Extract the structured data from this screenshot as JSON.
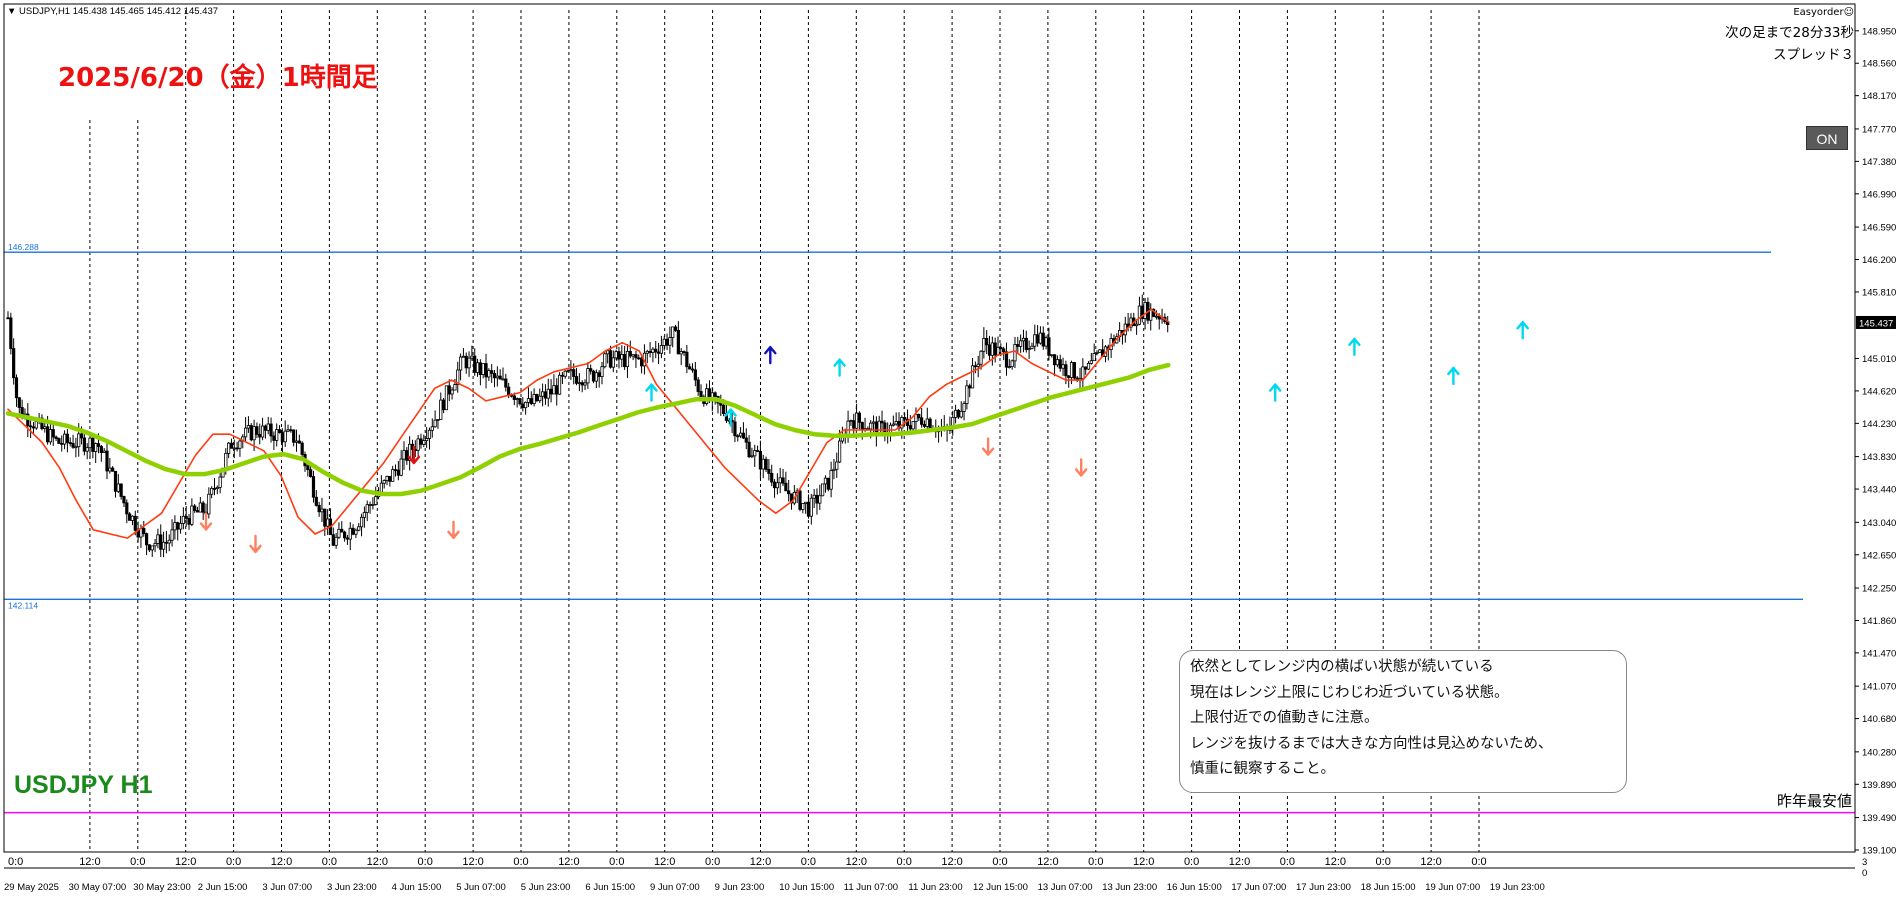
{
  "header": {
    "symbol_label": "USDJPY,H1",
    "ohlc": "145.438 145.465 145.412 145.437",
    "date_title": "2025/6/20（金）1時間足",
    "symbol_tag": "USDJPY H1"
  },
  "panel": {
    "easyorder": "Easyorder☺",
    "countdown": "次の足まで28分33秒",
    "spread": "スプレッド３",
    "on_button": "ON",
    "last_year_low": "昨年最安値"
  },
  "note_lines": [
    "依然としてレンジ内の横ばい状態が続いている",
    "現在はレンジ上限にじわじわ近づいている状態。",
    "上限付近での値動きに注意。",
    "レンジを抜けるまでは大きな方向性は見込めないため、",
    "慎重に観察すること。"
  ],
  "colors": {
    "candle": "#000000",
    "fast_ma": "#ff3b10",
    "slow_ma": "#8fd000",
    "range_line": "#1a73d9",
    "low_line": "#ff00ff",
    "title_red": "#ee1111",
    "symbol_green": "#1a8a1a"
  },
  "chart_data": {
    "type": "candlestick",
    "ylim": [
      139.1,
      149.2
    ],
    "y_ticks": [
      "148.950",
      "148.560",
      "148.170",
      "147.770",
      "147.380",
      "146.990",
      "146.590",
      "146.200",
      "145.810",
      "145.010",
      "144.620",
      "144.230",
      "143.830",
      "143.440",
      "143.040",
      "142.650",
      "142.250",
      "141.860",
      "141.470",
      "141.070",
      "140.680",
      "140.280",
      "139.890",
      "139.490",
      "139.100"
    ],
    "current_price": "145.437",
    "bottom_right_axis": [
      "3",
      "0"
    ],
    "x_top_labels": [
      "0:0",
      "12:0",
      "0:0",
      "12:0",
      "0:0",
      "12:0",
      "0:0",
      "12:0",
      "0:0",
      "12:0",
      "0:0",
      "12:0",
      "0:0",
      "12:0",
      "0:0",
      "12:0",
      "0:0",
      "12:0",
      "0:0",
      "12:0",
      "0:0",
      "12:0",
      "0:0",
      "12:0",
      "0:0",
      "12:0",
      "0:0",
      "12:0",
      "0:0",
      "12:0",
      "0:0"
    ],
    "x_bottom_labels": [
      "29 May 2025",
      "30 May 07:00",
      "30 May 23:00",
      "2 Jun 15:00",
      "3 Jun 07:00",
      "3 Jun 23:00",
      "4 Jun 15:00",
      "5 Jun 07:00",
      "5 Jun 23:00",
      "6 Jun 15:00",
      "9 Jun 07:00",
      "9 Jun 23:00",
      "10 Jun 15:00",
      "11 Jun 07:00",
      "11 Jun 23:00",
      "12 Jun 15:00",
      "13 Jun 07:00",
      "13 Jun 23:00",
      "16 Jun 15:00",
      "17 Jun 07:00",
      "17 Jun 23:00",
      "18 Jun 15:00",
      "19 Jun 07:00",
      "19 Jun 23:00"
    ],
    "range_high": {
      "value": 146.288,
      "label": "146.288"
    },
    "range_low": {
      "value": 142.114,
      "label": "142.114"
    },
    "last_year_low_value": 139.55,
    "price_path": [
      {
        "x": 0,
        "y": 145.5
      },
      {
        "x": 0.5,
        "y": 144.4
      },
      {
        "x": 2.5,
        "y": 144.0
      },
      {
        "x": 4.5,
        "y": 144.0
      },
      {
        "x": 6,
        "y": 143.2
      },
      {
        "x": 7,
        "y": 142.8
      },
      {
        "x": 8,
        "y": 142.8
      },
      {
        "x": 9,
        "y": 143.1
      },
      {
        "x": 10,
        "y": 143.2
      },
      {
        "x": 11.3,
        "y": 144.0
      },
      {
        "x": 12.5,
        "y": 144.15
      },
      {
        "x": 13.6,
        "y": 144.1
      },
      {
        "x": 14.6,
        "y": 144.05
      },
      {
        "x": 15.5,
        "y": 143.4
      },
      {
        "x": 16.4,
        "y": 142.8
      },
      {
        "x": 17.5,
        "y": 143.0
      },
      {
        "x": 18.7,
        "y": 143.4
      },
      {
        "x": 20,
        "y": 143.8
      },
      {
        "x": 21.6,
        "y": 144.3
      },
      {
        "x": 23,
        "y": 145.0
      },
      {
        "x": 25,
        "y": 144.7
      },
      {
        "x": 26.3,
        "y": 144.45
      },
      {
        "x": 27.4,
        "y": 144.6
      },
      {
        "x": 28.3,
        "y": 144.8
      },
      {
        "x": 29.5,
        "y": 144.8
      },
      {
        "x": 30.2,
        "y": 145.0
      },
      {
        "x": 32,
        "y": 145.0
      },
      {
        "x": 33.6,
        "y": 145.3
      },
      {
        "x": 35,
        "y": 144.6
      },
      {
        "x": 36.3,
        "y": 144.35
      },
      {
        "x": 37.2,
        "y": 144.0
      },
      {
        "x": 39.1,
        "y": 143.45
      },
      {
        "x": 40.5,
        "y": 143.2
      },
      {
        "x": 41.5,
        "y": 143.55
      },
      {
        "x": 42.5,
        "y": 144.3
      },
      {
        "x": 44,
        "y": 144.15
      },
      {
        "x": 45,
        "y": 144.2
      },
      {
        "x": 46.3,
        "y": 144.3
      },
      {
        "x": 47.4,
        "y": 144.1
      },
      {
        "x": 48.2,
        "y": 144.5
      },
      {
        "x": 49.3,
        "y": 145.2
      },
      {
        "x": 50.5,
        "y": 145.0
      },
      {
        "x": 52,
        "y": 145.3
      },
      {
        "x": 53.3,
        "y": 144.9
      },
      {
        "x": 54.3,
        "y": 144.8
      },
      {
        "x": 55.3,
        "y": 145.1
      },
      {
        "x": 56.5,
        "y": 145.4
      },
      {
        "x": 57.3,
        "y": 145.6
      },
      {
        "x": 58.6,
        "y": 145.5
      }
    ],
    "series": [
      {
        "values": [
          144.4,
          144.2,
          144.0,
          143.7,
          143.3,
          142.95,
          142.9,
          142.85,
          143.0,
          143.15,
          143.5,
          143.85,
          144.1,
          144.1,
          144.0,
          143.9,
          143.6,
          143.1,
          142.9,
          143.0,
          143.25,
          143.5,
          143.75,
          144.05,
          144.35,
          144.65,
          144.75,
          144.65,
          144.5,
          144.55,
          144.6,
          144.75,
          144.85,
          144.9,
          144.95,
          145.1,
          145.2,
          145.1,
          144.7,
          144.45,
          144.2,
          143.95,
          143.7,
          143.5,
          143.3,
          143.15,
          143.3,
          143.65,
          144.0,
          144.15,
          144.15,
          144.15,
          144.15,
          144.3,
          144.55,
          144.7,
          144.8,
          144.9,
          145.05,
          145.1,
          144.95,
          144.85,
          144.75,
          144.75,
          145.0,
          145.25,
          145.45,
          145.6,
          145.45
        ]
      },
      {
        "values": [
          144.35,
          144.3,
          144.25,
          144.2,
          144.12,
          144.02,
          143.9,
          143.78,
          143.68,
          143.62,
          143.62,
          143.67,
          143.75,
          143.83,
          143.86,
          143.8,
          143.65,
          143.52,
          143.42,
          143.38,
          143.38,
          143.42,
          143.5,
          143.58,
          143.7,
          143.83,
          143.92,
          143.98,
          144.05,
          144.12,
          144.2,
          144.28,
          144.36,
          144.42,
          144.47,
          144.52,
          144.52,
          144.44,
          144.33,
          144.22,
          144.15,
          144.1,
          144.08,
          144.08,
          144.1,
          144.1,
          144.12,
          144.15,
          144.18,
          144.22,
          144.3,
          144.38,
          144.46,
          144.54,
          144.6,
          144.66,
          144.72,
          144.78,
          144.87,
          144.93
        ]
      }
    ],
    "signals": [
      {
        "x": 10,
        "y": 143.05,
        "dir": "down",
        "color": "#ff8060"
      },
      {
        "x": 12.5,
        "y": 142.78,
        "dir": "down",
        "color": "#ff8060"
      },
      {
        "x": 20.5,
        "y": 143.85,
        "dir": "down",
        "color": "#e01010"
      },
      {
        "x": 22.5,
        "y": 142.95,
        "dir": "down",
        "color": "#ff8060"
      },
      {
        "x": 32.5,
        "y": 144.6,
        "dir": "up",
        "color": "#00d8f0"
      },
      {
        "x": 36.5,
        "y": 144.3,
        "dir": "up",
        "color": "#00d8f0"
      },
      {
        "x": 38.5,
        "y": 145.05,
        "dir": "up",
        "color": "#1010c0"
      },
      {
        "x": 42,
        "y": 144.9,
        "dir": "up",
        "color": "#00d8f0"
      },
      {
        "x": 49.5,
        "y": 143.95,
        "dir": "down",
        "color": "#ff8060"
      },
      {
        "x": 54.2,
        "y": 143.7,
        "dir": "down",
        "color": "#ff8060"
      },
      {
        "x": 64,
        "y": 144.6,
        "dir": "up",
        "color": "#00d8f0"
      },
      {
        "x": 68,
        "y": 145.15,
        "dir": "up",
        "color": "#00d8f0"
      },
      {
        "x": 73,
        "y": 144.8,
        "dir": "up",
        "color": "#00d8f0"
      },
      {
        "x": 76.5,
        "y": 145.35,
        "dir": "up",
        "color": "#00d8f0"
      }
    ]
  }
}
